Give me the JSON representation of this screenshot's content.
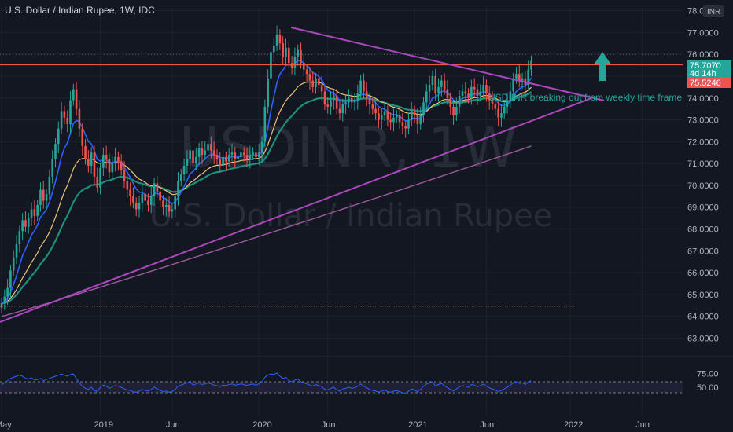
{
  "header": {
    "title": "U.S. Dollar / Indian Rupee, 1W, IDC"
  },
  "watermark": {
    "symbol": "USDINR, 1W",
    "name": "U.S. Dollar / Indian Rupee"
  },
  "currency_badge": "INR",
  "annotation": "USD INR breaking out from weekly time frame",
  "price_labels": {
    "current": "75.7070",
    "countdown": "4d 14h",
    "resistance": "75.5246"
  },
  "colors": {
    "background": "#131722",
    "up": "#26a69a",
    "down": "#ef5350",
    "trendline": "#ab47bc",
    "resistance": "#ef5350",
    "ema_fast": "#2962ff",
    "ema_mid": "#f0c27b",
    "ema_slow": "#1b8f7a",
    "ema_long": "#9c5a9c",
    "rsi": "#2962ff"
  },
  "chart_data": {
    "type": "candlestick",
    "symbol": "USDINR",
    "interval": "1W",
    "y_axis_ticks": [
      "78.0000",
      "77.0000",
      "76.0000",
      "75.0000",
      "74.0000",
      "73.0000",
      "72.0000",
      "71.0000",
      "70.0000",
      "69.0000",
      "68.0000",
      "67.0000",
      "66.0000",
      "65.0000",
      "64.0000",
      "63.0000"
    ],
    "ylim": [
      62.3,
      78.2
    ],
    "x_axis_ticks": [
      "May",
      "2019",
      "Jun",
      "2020",
      "Jun",
      "2021",
      "Jun",
      "2022",
      "Jun"
    ],
    "x_ticks_week": [
      0,
      33,
      57,
      86,
      109,
      138,
      162,
      190,
      214
    ],
    "close": [
      64.6,
      64.9,
      65.3,
      66.1,
      66.7,
      67.3,
      67.9,
      68.4,
      68.1,
      68.5,
      68.9,
      68.6,
      69.1,
      69.8,
      69.3,
      69.6,
      70.4,
      71.2,
      71.9,
      72.6,
      73.4,
      73.1,
      72.8,
      73.9,
      74.4,
      73.5,
      72.6,
      71.8,
      71.2,
      70.9,
      71.5,
      70.4,
      69.9,
      70.8,
      71.4,
      71.2,
      70.6,
      71.0,
      71.3,
      71.1,
      70.7,
      70.2,
      69.8,
      69.5,
      69.2,
      68.9,
      69.2,
      69.6,
      69.3,
      69.1,
      69.5,
      70.1,
      69.7,
      69.3,
      69.0,
      69.1,
      68.8,
      68.9,
      69.5,
      70.2,
      70.5,
      70.9,
      71.2,
      71.6,
      71.0,
      71.3,
      71.7,
      71.4,
      71.6,
      71.9,
      71.6,
      71.4,
      71.2,
      70.9,
      71.3,
      71.1,
      71.4,
      71.5,
      71.2,
      71.3,
      71.5,
      71.4,
      71.2,
      71.4,
      71.5,
      71.3,
      71.5,
      72.0,
      73.6,
      74.9,
      76.1,
      76.4,
      76.9,
      76.5,
      75.9,
      76.3,
      75.6,
      75.4,
      75.9,
      76.2,
      75.6,
      75.3,
      75.1,
      74.8,
      74.5,
      74.9,
      74.6,
      74.3,
      73.7,
      73.6,
      73.9,
      74.1,
      73.5,
      73.3,
      73.7,
      73.8,
      74.0,
      73.8,
      73.9,
      74.2,
      74.8,
      74.3,
      74.0,
      73.7,
      73.5,
      73.3,
      73.0,
      73.2,
      73.4,
      73.0,
      72.9,
      73.1,
      73.2,
      72.9,
      72.7,
      72.6,
      73.0,
      73.4,
      73.2,
      72.8,
      73.2,
      73.8,
      74.3,
      74.6,
      75.0,
      74.2,
      74.5,
      74.8,
      74.4,
      74.0,
      73.6,
      73.2,
      73.6,
      74.1,
      74.3,
      74.2,
      74.0,
      74.5,
      74.4,
      74.1,
      74.3,
      74.6,
      74.2,
      73.9,
      73.7,
      73.5,
      73.1,
      73.3,
      73.6,
      73.9,
      74.3,
      74.9,
      75.1,
      74.8,
      74.9,
      74.6,
      75.3,
      75.7
    ],
    "ema_fast_last": 74.9,
    "ema_mid_last": 74.4,
    "ema_slow_last": 74.0,
    "ema_long_last": 71.8,
    "resistance_level": 75.5246,
    "current_price": 75.707,
    "trendline_upper": {
      "from": {
        "week": 84,
        "price": 77.5
      },
      "to": {
        "week": 183,
        "price": 74.0
      }
    },
    "trendline_lower": {
      "from": {
        "week": 0,
        "price": 64.2
      },
      "to": {
        "week": 183,
        "price": 74.4
      }
    },
    "dotted_level": 64.45,
    "rsi": {
      "ticks": [
        "75.00",
        "50.00"
      ],
      "upper_band": 60,
      "lower_band": 40,
      "values": [
        55,
        58,
        62,
        66,
        68,
        70,
        72,
        70,
        66,
        65,
        67,
        63,
        64,
        66,
        62,
        64,
        66,
        68,
        70,
        72,
        74,
        72,
        70,
        73,
        74,
        66,
        58,
        52,
        48,
        46,
        50,
        44,
        42,
        50,
        54,
        52,
        48,
        51,
        53,
        52,
        50,
        47,
        45,
        44,
        42,
        41,
        43,
        46,
        44,
        43,
        46,
        50,
        47,
        44,
        42,
        43,
        41,
        42,
        46,
        52,
        54,
        56,
        58,
        60,
        54,
        56,
        58,
        55,
        56,
        58,
        56,
        54,
        53,
        51,
        54,
        53,
        55,
        56,
        54,
        55,
        56,
        55,
        53,
        55,
        56,
        54,
        56,
        60,
        68,
        72,
        74,
        73,
        76,
        70,
        66,
        68,
        62,
        60,
        63,
        65,
        60,
        58,
        56,
        54,
        52,
        55,
        53,
        51,
        46,
        45,
        48,
        50,
        45,
        43,
        47,
        48,
        50,
        48,
        49,
        52,
        56,
        52,
        49,
        46,
        44,
        43,
        41,
        43,
        45,
        42,
        41,
        43,
        44,
        42,
        40,
        39,
        43,
        47,
        45,
        42,
        46,
        52,
        56,
        58,
        60,
        52,
        55,
        57,
        53,
        49,
        46,
        43,
        47,
        51,
        53,
        52,
        50,
        55,
        54,
        51,
        53,
        56,
        52,
        49,
        47,
        45,
        42,
        44,
        47,
        50,
        54,
        58,
        60,
        57,
        58,
        55,
        60,
        62
      ]
    }
  }
}
